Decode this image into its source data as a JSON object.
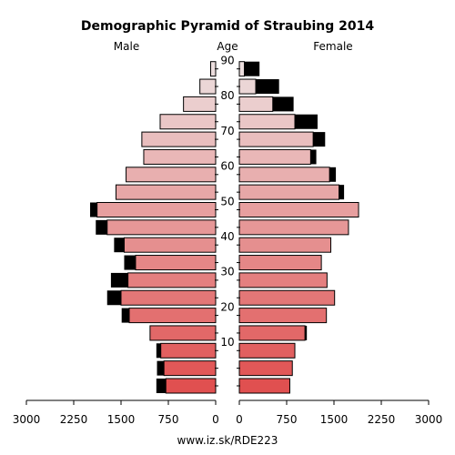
{
  "chart_data": {
    "type": "bar",
    "title": "Demographic Pyramid of Straubing 2014",
    "left_label": "Male",
    "center_label": "Age",
    "right_label": "Female",
    "footer": "www.iz.sk/RDE223",
    "age_ticks": [
      "10",
      "20",
      "30",
      "40",
      "50",
      "60",
      "70",
      "80",
      "90"
    ],
    "x_ticks_left": [
      "3000",
      "2250",
      "1500",
      "750",
      "0"
    ],
    "x_ticks_right": [
      "0",
      "750",
      "1500",
      "2250",
      "3000"
    ],
    "xlim": [
      0,
      3000
    ],
    "age_groups": [
      "0-4",
      "5-9",
      "10-14",
      "15-19",
      "20-24",
      "25-29",
      "30-34",
      "35-39",
      "40-44",
      "45-49",
      "50-54",
      "55-59",
      "60-64",
      "65-69",
      "70-74",
      "75-79",
      "80-84",
      "85-89",
      "90+"
    ],
    "series": [
      {
        "name": "Male",
        "values": [
          790,
          820,
          870,
          1040,
          1370,
          1500,
          1390,
          1270,
          1450,
          1720,
          1880,
          1580,
          1420,
          1140,
          1170,
          880,
          510,
          250,
          80
        ]
      },
      {
        "name": "Male (black)",
        "values": [
          150,
          110,
          70,
          0,
          120,
          220,
          270,
          180,
          160,
          180,
          110,
          0,
          0,
          0,
          0,
          0,
          0,
          0,
          0
        ]
      },
      {
        "name": "Female",
        "values": [
          800,
          840,
          880,
          1040,
          1380,
          1510,
          1390,
          1300,
          1450,
          1730,
          1890,
          1580,
          1430,
          1130,
          1170,
          880,
          530,
          260,
          80
        ]
      },
      {
        "name": "Female (black)",
        "values": [
          0,
          0,
          0,
          30,
          0,
          0,
          0,
          0,
          0,
          0,
          0,
          80,
          100,
          90,
          190,
          360,
          330,
          370,
          240
        ]
      }
    ],
    "colors": {
      "young": "#e05050",
      "old": "#ecdede",
      "black": "#000000"
    }
  }
}
